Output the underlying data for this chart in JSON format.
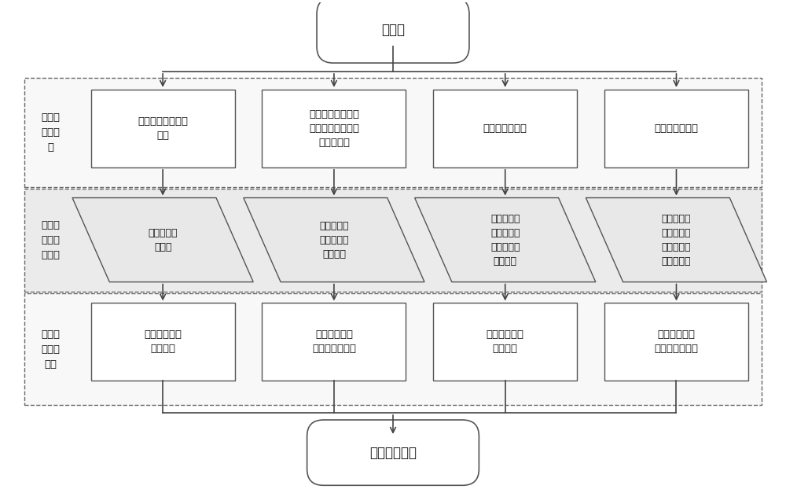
{
  "title_top": "电路图",
  "title_bottom": "电气仿真模型",
  "row1_labels": [
    "电气系统列车配置\n信息",
    "电路图列表信息、\n设备名称、针脚及\n连接信号等",
    "电路图元器件库",
    "电路图黑盒设备"
  ],
  "row2_labels": [
    "列车信息配\n置文件",
    "电气仿真模\n型命名规则\n配置文件",
    "电路图和电\n气仿真模型\n元器件对应\n配置文件",
    "电路图和电\n气仿真模型\n黑盒设备对\n应配置文件"
  ],
  "row3_labels": [
    "电气仿真模型\n工程架构",
    "电气仿真模型\n绘制及电气连接",
    "电气仿真模型\n元器件库",
    "电气仿真模型\n黑盒设备逻辑库"
  ],
  "section_labels": [
    "电路图\n信息读\n取",
    "配置文\n件数据\n库处理",
    "生成电\n气仿真\n模型"
  ],
  "bg_color": "#ffffff",
  "box_facecolor": "#ffffff",
  "box_edgecolor": "#555555",
  "sec1_bg": "#f8f8f8",
  "sec2_bg": "#ebebeb",
  "sec3_bg": "#f8f8f8",
  "para_bg": "#e8e8e8",
  "dashed_color": "#666666",
  "arrow_color": "#444444",
  "text_color": "#111111",
  "fontsize": 9.5,
  "title_fontsize": 12
}
